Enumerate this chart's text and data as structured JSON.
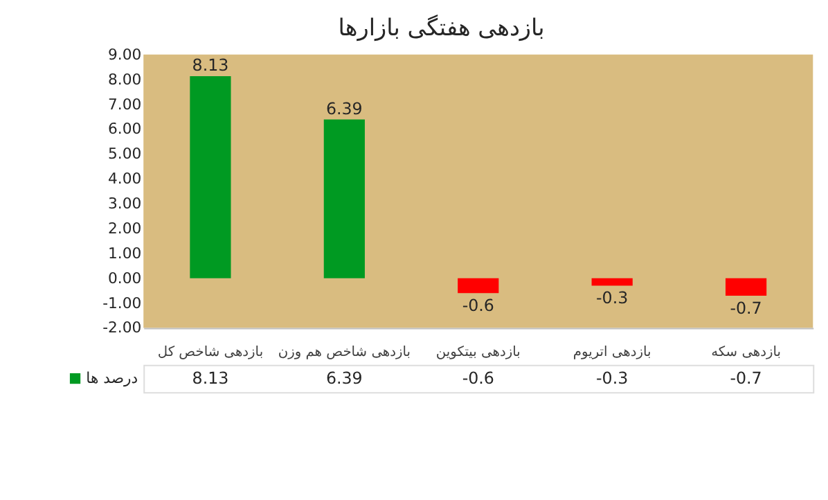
{
  "chart_data": {
    "type": "bar",
    "title": "بازدهی هفتگی بازارها",
    "categories": [
      "بازدهی شاخص کل",
      "بازدهی شاخص هم وزن",
      "بازدهی بیتکوین",
      "بازدهی اتریوم",
      "بازدهی سکه"
    ],
    "series": [
      {
        "name": "درصد ها",
        "color": "#009a22",
        "colors": [
          "#009a22",
          "#009a22",
          "#ff0000",
          "#ff0000",
          "#ff0000"
        ],
        "values": [
          8.13,
          6.39,
          -0.6,
          -0.3,
          -0.7
        ],
        "value_labels": [
          "8.13",
          "6.39",
          "-0.6",
          "-0.3",
          "-0.7"
        ]
      }
    ],
    "ylim": [
      -2,
      9
    ],
    "yticks": [
      {
        "value": -2,
        "label": "-2.00"
      },
      {
        "value": -1,
        "label": "-1.00"
      },
      {
        "value": 0,
        "label": "0.00"
      },
      {
        "value": 1,
        "label": "1.00"
      },
      {
        "value": 2,
        "label": "2.00"
      },
      {
        "value": 3,
        "label": "3.00"
      },
      {
        "value": 4,
        "label": "4.00"
      },
      {
        "value": 5,
        "label": "5.00"
      },
      {
        "value": 6,
        "label": "6.00"
      },
      {
        "value": 7,
        "label": "7.00"
      },
      {
        "value": 8,
        "label": "8.00"
      },
      {
        "value": 9,
        "label": "9.00"
      }
    ],
    "annotations": [
      "8.13",
      "6.39",
      "-0.6",
      "-0.3",
      "-0.7"
    ],
    "legend": "bottom left",
    "grid": false
  }
}
